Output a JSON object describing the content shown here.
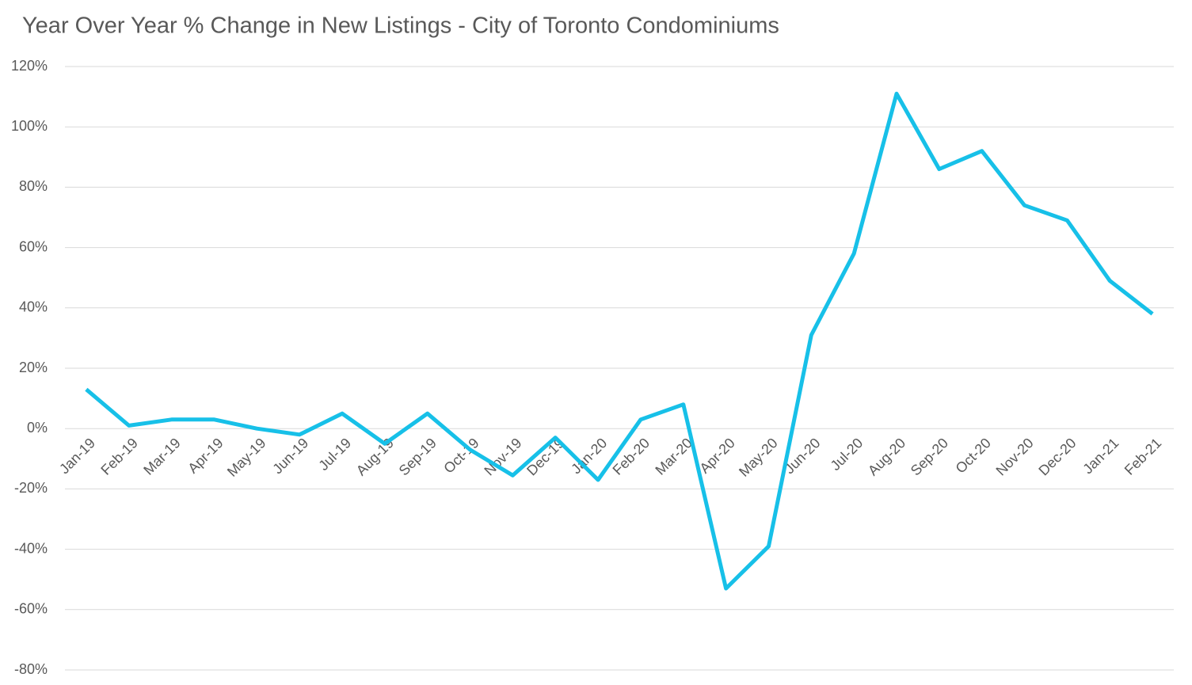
{
  "chart_data": {
    "type": "line",
    "title": "Year Over Year % Change in New Listings - City of Toronto Condominiums",
    "categories": [
      "Jan-19",
      "Feb-19",
      "Mar-19",
      "Apr-19",
      "May-19",
      "Jun-19",
      "Jul-19",
      "Aug-19",
      "Sep-19",
      "Oct-19",
      "Nov-19",
      "Dec-19",
      "Jan-20",
      "Feb-20",
      "Mar-20",
      "Apr-20",
      "May-20",
      "Jun-20",
      "Jul-20",
      "Aug-20",
      "Sep-20",
      "Oct-20",
      "Nov-20",
      "Dec-20",
      "Jan-21",
      "Feb-21"
    ],
    "values": [
      13,
      1,
      3,
      3,
      0,
      -2,
      5,
      -5,
      5,
      -7,
      -15.5,
      -3,
      -17,
      3,
      8,
      -53,
      -39,
      31,
      58,
      111,
      86,
      92,
      74,
      69,
      49,
      38
    ],
    "color": "#17c0e8",
    "ylim": [
      -80,
      120
    ],
    "yticks": [
      {
        "value": -80,
        "label": "-80%"
      },
      {
        "value": -60,
        "label": "-60%"
      },
      {
        "value": -40,
        "label": "-40%"
      },
      {
        "value": -20,
        "label": "-20%"
      },
      {
        "value": 0,
        "label": "0%"
      },
      {
        "value": 20,
        "label": "20%"
      },
      {
        "value": 40,
        "label": "40%"
      },
      {
        "value": 60,
        "label": "60%"
      },
      {
        "value": 80,
        "label": "80%"
      },
      {
        "value": 100,
        "label": "100%"
      },
      {
        "value": 120,
        "label": "120%"
      }
    ],
    "grid": true
  }
}
